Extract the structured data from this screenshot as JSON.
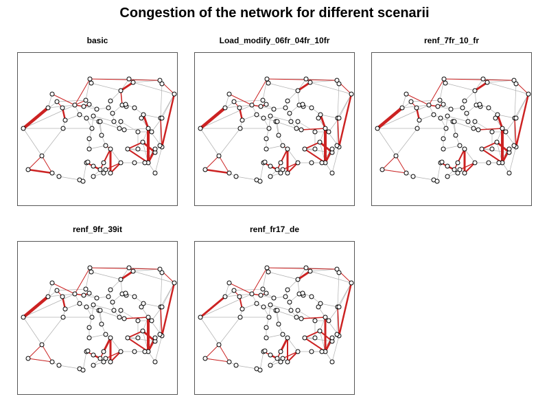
{
  "title": "Congestion of the network for different scenarii",
  "colors": {
    "congested": "#cc2222",
    "uncongested": "#b0b0b0",
    "node_fill": "#ffffff",
    "node_stroke": "#000000"
  },
  "panels": [
    {
      "id": "basic",
      "title": "basic"
    },
    {
      "id": "load",
      "title": "Load_modify_06fr_04fr_10fr"
    },
    {
      "id": "renf7",
      "title": "renf_7fr_10_fr"
    },
    {
      "id": "renf9",
      "title": "renf_9fr_39it"
    },
    {
      "id": "renf17",
      "title": "renf_fr17_de"
    }
  ]
}
